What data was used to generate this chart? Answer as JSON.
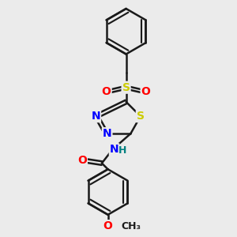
{
  "bg_color": "#ebebeb",
  "bond_color": "#1a1a1a",
  "bond_width": 1.8,
  "atom_colors": {
    "N": "#0000ff",
    "S": "#cccc00",
    "O": "#ff0000",
    "H": "#008080",
    "C": "#1a1a1a"
  },
  "font_size": 10,
  "font_size_small": 9
}
